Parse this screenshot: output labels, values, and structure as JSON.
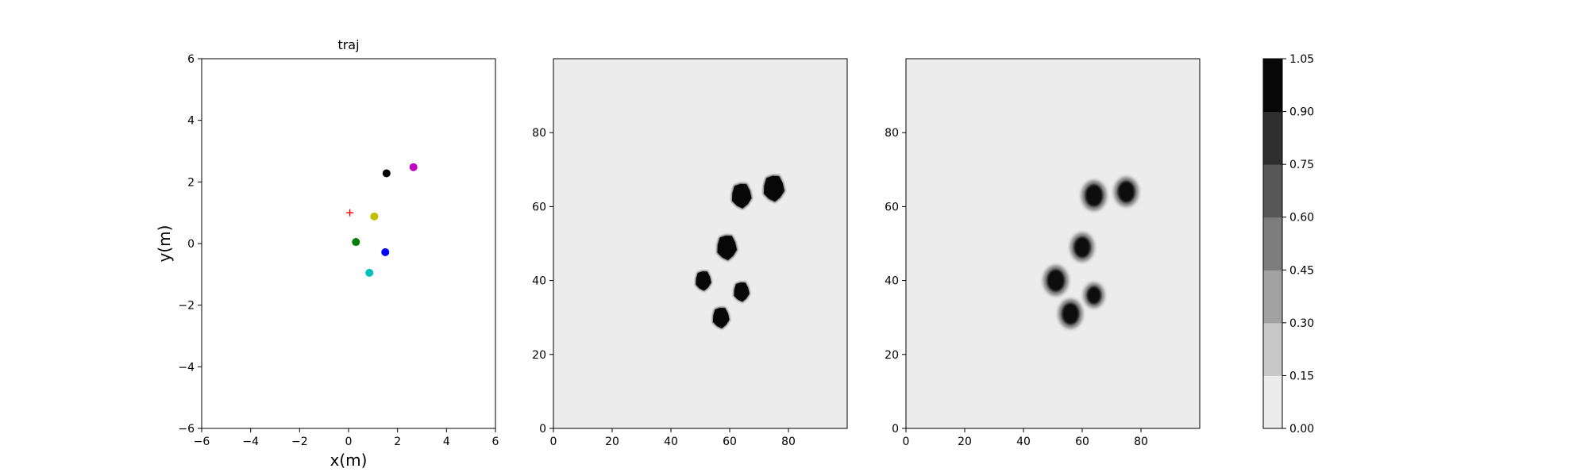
{
  "chart_data": [
    {
      "type": "scatter",
      "title": "traj",
      "xlabel": "x(m)",
      "ylabel": "y(m)",
      "xlim": [
        -6,
        6
      ],
      "ylim": [
        -6,
        6
      ],
      "xticks": [
        -6,
        -4,
        -2,
        0,
        2,
        4,
        6
      ],
      "yticks": [
        -6,
        -4,
        -2,
        0,
        2,
        4,
        6
      ],
      "points": [
        {
          "x": 1.55,
          "y": 2.28,
          "color": "#000000",
          "marker": "circle"
        },
        {
          "x": 2.65,
          "y": 2.48,
          "color": "#bf00bf",
          "marker": "circle"
        },
        {
          "x": 0.05,
          "y": 1.0,
          "color": "#ff0000",
          "marker": "plus"
        },
        {
          "x": 1.05,
          "y": 0.88,
          "color": "#bfbf00",
          "marker": "circle"
        },
        {
          "x": 0.3,
          "y": 0.05,
          "color": "#008000",
          "marker": "circle"
        },
        {
          "x": 1.5,
          "y": -0.28,
          "color": "#0000ff",
          "marker": "circle"
        },
        {
          "x": 0.85,
          "y": -0.95,
          "color": "#00bfbf",
          "marker": "circle"
        }
      ]
    },
    {
      "type": "heatmap",
      "xlim": [
        0,
        100
      ],
      "ylim": [
        0,
        100
      ],
      "xticks": [
        0,
        20,
        40,
        60,
        80
      ],
      "yticks": [
        0,
        20,
        40,
        60,
        80
      ],
      "background_value": 0.05,
      "blob_value": 1.0,
      "blobs": [
        {
          "x": 75,
          "y": 65,
          "r": 4.0
        },
        {
          "x": 64,
          "y": 63,
          "r": 3.8
        },
        {
          "x": 59,
          "y": 49,
          "r": 3.8
        },
        {
          "x": 51,
          "y": 40,
          "r": 3.0
        },
        {
          "x": 64,
          "y": 37,
          "r": 3.0
        },
        {
          "x": 57,
          "y": 30,
          "r": 3.2
        }
      ]
    },
    {
      "type": "heatmap",
      "xlim": [
        0,
        100
      ],
      "ylim": [
        0,
        100
      ],
      "xticks": [
        0,
        20,
        40,
        60,
        80
      ],
      "yticks": [
        0,
        20,
        40,
        60,
        80
      ],
      "background_value": 0.05,
      "blob_value": 1.0,
      "blobs": [
        {
          "x": 75,
          "y": 64,
          "r": 3.4
        },
        {
          "x": 64,
          "y": 63,
          "r": 3.5
        },
        {
          "x": 60,
          "y": 49,
          "r": 3.3
        },
        {
          "x": 51,
          "y": 40,
          "r": 3.5
        },
        {
          "x": 64,
          "y": 36,
          "r": 2.8
        },
        {
          "x": 56,
          "y": 31,
          "r": 3.4
        }
      ]
    }
  ],
  "colorbar": {
    "ticks": [
      "0.00",
      "0.15",
      "0.30",
      "0.45",
      "0.60",
      "0.75",
      "0.90",
      "1.05"
    ],
    "levels": [
      "#ececec",
      "#c8c8c8",
      "#a2a2a2",
      "#7d7d7d",
      "#575757",
      "#2f2f2f",
      "#070707"
    ]
  }
}
